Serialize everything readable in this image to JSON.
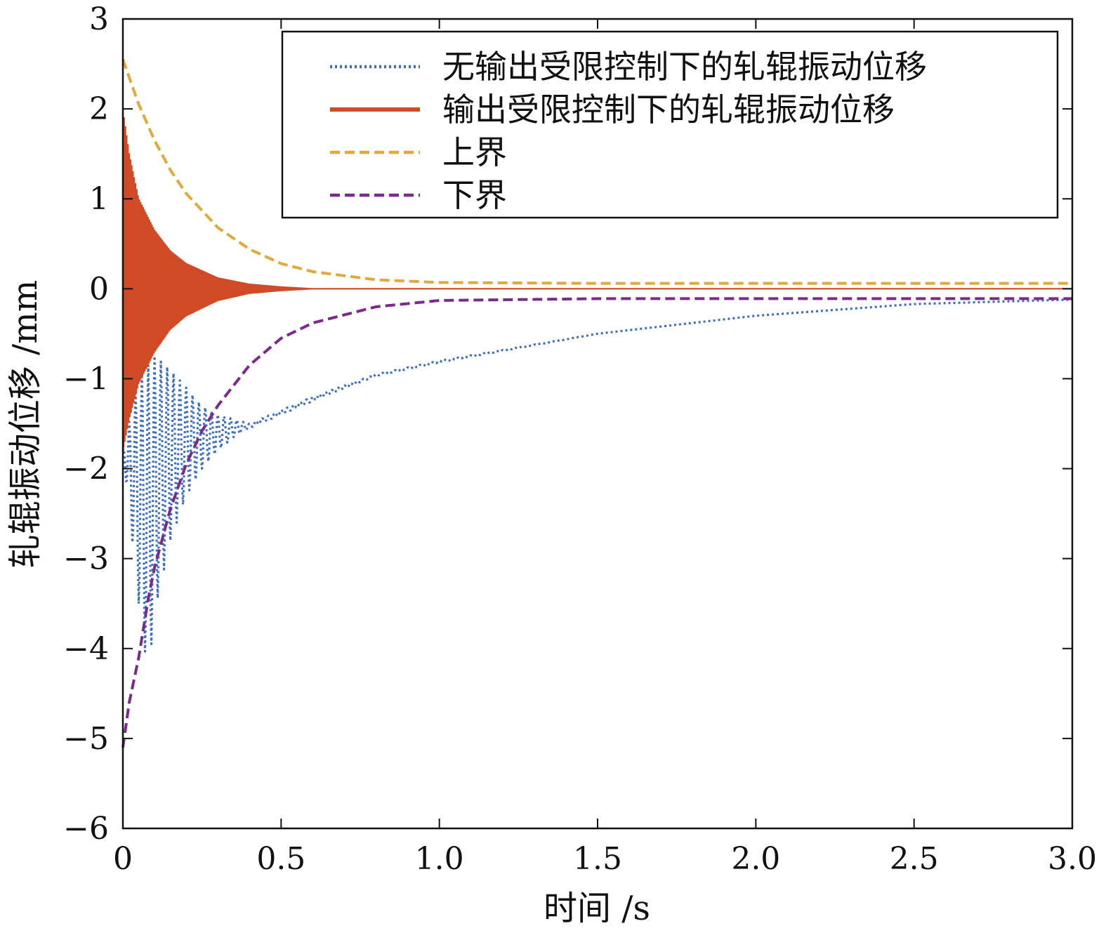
{
  "chart_data": {
    "type": "line",
    "title": "",
    "xlabel": "时间 /s",
    "ylabel": "轧辊振动位移 /mm",
    "xlim": [
      0,
      3
    ],
    "ylim": [
      -6,
      3
    ],
    "grid": false,
    "legend_position": "top-right",
    "x_ticks": [
      0,
      0.5,
      1.0,
      1.5,
      2.0,
      2.5,
      3.0
    ],
    "x_tick_labels": [
      "0",
      "0.5",
      "1.0",
      "1.5",
      "2.0",
      "2.5",
      "3.0"
    ],
    "y_ticks": [
      3,
      2,
      1,
      0,
      -1,
      -2,
      -3,
      -4,
      -5,
      -6
    ],
    "y_tick_labels": [
      "3",
      "2",
      "1",
      "0",
      "−1",
      "−2",
      "−3",
      "−4",
      "−5",
      "−6"
    ],
    "series": [
      {
        "name": "无输出受限控制下的轧辊振动位移",
        "style": "dotted",
        "color": "#3d6fbf",
        "envelope_upper": {
          "x": [
            0,
            0.05,
            0.1,
            0.15,
            0.2,
            0.25,
            0.3,
            0.35,
            0.4,
            0.5,
            0.6,
            0.8,
            1.0,
            1.5,
            2.0,
            2.5,
            3.0
          ],
          "y": [
            -1.8,
            -1.0,
            -0.75,
            -0.9,
            -1.1,
            -1.3,
            -1.4,
            -1.45,
            -1.5,
            -1.35,
            -1.2,
            -0.95,
            -0.8,
            -0.5,
            -0.3,
            -0.17,
            -0.12
          ]
        },
        "envelope_lower": {
          "x": [
            0,
            0.05,
            0.08,
            0.1,
            0.15,
            0.2,
            0.25,
            0.3,
            0.35,
            0.4,
            0.5,
            0.6,
            0.8,
            1.0,
            1.5,
            2.0,
            2.5,
            3.0
          ],
          "y": [
            -1.8,
            -3.5,
            -4.3,
            -3.6,
            -2.8,
            -2.3,
            -2.0,
            -1.8,
            -1.65,
            -1.55,
            -1.4,
            -1.25,
            -0.97,
            -0.82,
            -0.5,
            -0.3,
            -0.17,
            -0.12
          ]
        }
      },
      {
        "name": "输出受限控制下的轧辊振动位移",
        "style": "solid",
        "color": "#d04a25",
        "envelope_upper": {
          "x": [
            0,
            0.02,
            0.05,
            0.1,
            0.15,
            0.2,
            0.3,
            0.4,
            0.5,
            0.6,
            3.0
          ],
          "y": [
            2.0,
            1.5,
            1.0,
            0.65,
            0.42,
            0.28,
            0.12,
            0.05,
            0.02,
            0.0,
            0.0
          ]
        },
        "envelope_lower": {
          "x": [
            0,
            0.02,
            0.05,
            0.1,
            0.15,
            0.2,
            0.3,
            0.4,
            0.5,
            0.6,
            3.0
          ],
          "y": [
            -1.8,
            -1.45,
            -1.05,
            -0.7,
            -0.45,
            -0.3,
            -0.13,
            -0.05,
            -0.02,
            0.0,
            0.0
          ]
        }
      },
      {
        "name": "上界",
        "style": "dashed",
        "color": "#e0a93a",
        "x": [
          0,
          0.05,
          0.1,
          0.15,
          0.2,
          0.3,
          0.4,
          0.5,
          0.6,
          0.8,
          1.0,
          1.5,
          2.0,
          2.5,
          3.0
        ],
        "y": [
          2.55,
          2.05,
          1.65,
          1.32,
          1.06,
          0.68,
          0.44,
          0.28,
          0.19,
          0.1,
          0.07,
          0.06,
          0.06,
          0.06,
          0.06
        ]
      },
      {
        "name": "下界",
        "style": "dashed",
        "color": "#7b2a8c",
        "x": [
          0,
          0.02,
          0.05,
          0.08,
          0.1,
          0.15,
          0.2,
          0.25,
          0.3,
          0.4,
          0.5,
          0.6,
          0.8,
          1.0,
          1.5,
          2.0,
          2.5,
          3.0
        ],
        "y": [
          -5.1,
          -4.6,
          -4.1,
          -3.45,
          -3.1,
          -2.45,
          -1.95,
          -1.58,
          -1.3,
          -0.85,
          -0.55,
          -0.38,
          -0.2,
          -0.13,
          -0.11,
          -0.11,
          -0.11,
          -0.11
        ]
      }
    ]
  }
}
